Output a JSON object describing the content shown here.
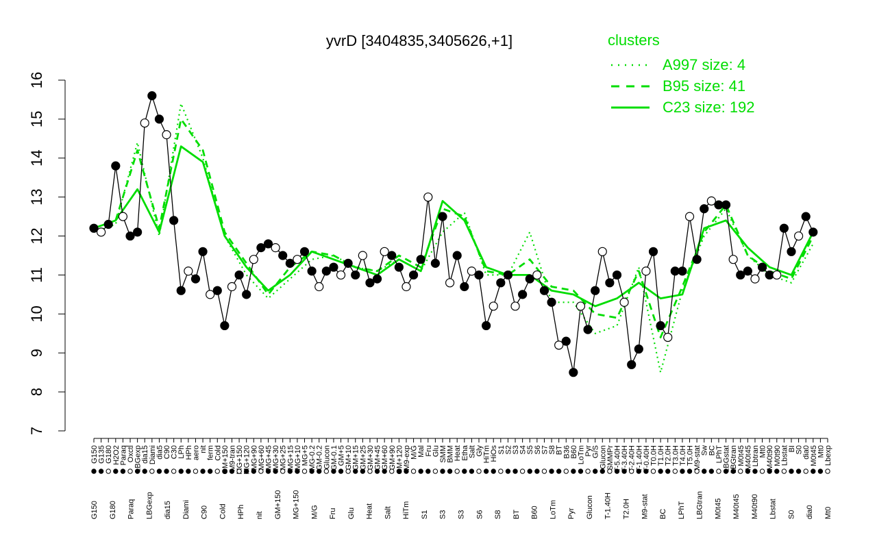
{
  "chart_data": {
    "type": "line",
    "title": "yvrD [3404835,3405626,+1]",
    "xlabel": "",
    "ylabel": "",
    "ylim": [
      7,
      16
    ],
    "yticks": [
      7,
      8,
      9,
      10,
      11,
      12,
      13,
      14,
      15,
      16
    ],
    "grid": false,
    "legend": {
      "title": "clusters",
      "position": "top-right",
      "entries": [
        "A997 size: 4",
        "B95 size: 41",
        "C23 size: 192"
      ]
    },
    "x_labels_top": [
      "G150",
      "G135",
      "G180",
      "H2O2",
      "Paraq",
      "Oxctl",
      "LBGexp",
      "dia15",
      "Diami",
      "dia5",
      "C90",
      "C30",
      "LPh",
      "HPh",
      "aero",
      "nit",
      "ferm",
      "Cold",
      "GM+150",
      "M9-tran",
      "MG+150",
      "MG+120",
      "MG+90",
      "MG+60",
      "MG+45",
      "MG+30",
      "MG+25",
      "MG+15",
      "MG+10",
      "MG+5",
      "MG-0.2",
      "GM-0.2",
      "Glucon",
      "GM-0.1",
      "GM+5",
      "GM+10",
      "GM+15",
      "GM+25",
      "GM+30",
      "GM+45",
      "GM+60",
      "GM+90",
      "GM+120",
      "M9-exp",
      "M/G",
      "Mal",
      "Fru",
      "Glu",
      "SMM",
      "BMM",
      "Heat",
      "Etha",
      "Salt",
      "Gly",
      "HiTm",
      "HiOs",
      "S1",
      "S2",
      "S3",
      "S4",
      "S5",
      "S6",
      "S7",
      "S8",
      "BT",
      "B36",
      "B60",
      "LoTm",
      "Pyr",
      "G/S",
      "Glucon",
      "SMMPr",
      "T-5.40H",
      "T-3.40H",
      "T-2.40H",
      "T-1.40H",
      "T-0.40H",
      "T0.0H",
      "T1.0H",
      "T2.0H",
      "T3.0H",
      "T4.0H",
      "T5.0H",
      "M9-stat",
      "Sw",
      "BC",
      "LPhT",
      "LBGstat",
      "LBGtran",
      "M0t45",
      "M40t45",
      "Lbtran",
      "Mt0",
      "M40t90",
      "M0t90",
      "Lbstat",
      "BI",
      "S0",
      "dia0",
      "M0t45",
      "Mt0",
      "Lbexp"
    ],
    "x_labels_bottom": [
      "G150",
      "G180",
      "Paraq",
      "LBGexp",
      "dia15",
      "Diami",
      "C90",
      "Cold",
      "HPh",
      "nit",
      "GM+150",
      "MG+150",
      "M/G",
      "Fru",
      "Glu",
      "Heat",
      "Salt",
      "HiTm",
      "S1",
      "S3",
      "S3",
      "S6",
      "S8",
      "BT",
      "B60",
      "LoTm",
      "Pyr",
      "Glucon",
      "T-1.40H",
      "T2.0H",
      "M9-stat",
      "BC",
      "LPhT",
      "LBGtran",
      "M0t45",
      "M40t45",
      "M40t90",
      "Lbstat",
      "S0",
      "dia0",
      "Mt0"
    ],
    "series": [
      {
        "name": "A997 size: 4",
        "style": "dotted",
        "color": "#00dd00",
        "x": [
          1,
          4,
          7,
          10,
          13,
          16,
          19,
          22,
          25,
          28,
          31,
          34,
          37,
          40,
          43,
          46,
          49,
          52,
          55,
          58,
          61,
          64,
          67,
          70,
          73,
          76,
          79,
          82,
          85,
          88,
          91,
          94,
          97,
          100
        ],
        "values": [
          12.1,
          12.3,
          14.4,
          12.0,
          15.4,
          14.0,
          12.0,
          11.0,
          10.4,
          10.9,
          11.4,
          11.5,
          11.2,
          11.1,
          11.4,
          11.1,
          12.1,
          12.6,
          11.0,
          11.0,
          12.1,
          10.3,
          10.3,
          9.5,
          9.7,
          11.2,
          8.5,
          10.6,
          12.0,
          12.7,
          11.5,
          11.0,
          10.8,
          11.8
        ]
      },
      {
        "name": "B95 size: 41",
        "style": "dashed",
        "color": "#00dd00",
        "x": [
          1,
          4,
          7,
          10,
          13,
          16,
          19,
          22,
          25,
          28,
          31,
          34,
          37,
          40,
          43,
          46,
          49,
          52,
          55,
          58,
          61,
          64,
          67,
          70,
          73,
          76,
          79,
          82,
          85,
          88,
          91,
          94,
          97,
          100
        ],
        "values": [
          12.2,
          12.4,
          14.2,
          12.2,
          15.0,
          14.2,
          12.1,
          11.3,
          10.5,
          11.2,
          11.6,
          11.5,
          11.2,
          11.1,
          11.5,
          11.2,
          12.7,
          12.5,
          11.1,
          11.0,
          11.4,
          10.7,
          10.6,
          10.0,
          9.9,
          11.1,
          9.4,
          10.7,
          12.1,
          12.8,
          11.5,
          11.1,
          10.9,
          12.0
        ]
      },
      {
        "name": "C23 size: 192",
        "style": "solid",
        "color": "#00dd00",
        "x": [
          1,
          4,
          7,
          10,
          13,
          16,
          19,
          22,
          25,
          28,
          31,
          34,
          37,
          40,
          43,
          46,
          49,
          52,
          55,
          58,
          61,
          64,
          67,
          70,
          73,
          76,
          79,
          82,
          85,
          88,
          91,
          94,
          97,
          100
        ],
        "values": [
          12.2,
          12.4,
          13.2,
          12.1,
          14.3,
          13.9,
          12.0,
          11.2,
          10.6,
          11.0,
          11.6,
          11.4,
          11.2,
          11.0,
          11.4,
          11.1,
          12.9,
          12.4,
          11.2,
          11.0,
          11.0,
          10.6,
          10.5,
          10.2,
          10.4,
          10.8,
          10.4,
          10.5,
          12.2,
          12.4,
          11.7,
          11.2,
          11.0,
          12.1
        ]
      },
      {
        "name": "",
        "style": "black-line-with-points",
        "color": "#000000",
        "x": [
          1,
          2,
          3,
          4,
          5,
          6,
          7,
          8,
          9,
          10,
          11,
          12,
          13,
          14,
          15,
          16,
          17,
          18,
          19,
          20,
          21,
          22,
          23,
          24,
          25,
          26,
          27,
          28,
          29,
          30,
          31,
          32,
          33,
          34,
          35,
          36,
          37,
          38,
          39,
          40,
          41,
          42,
          43,
          44,
          45,
          46,
          47,
          48,
          49,
          50,
          51,
          52,
          53,
          54,
          55,
          56,
          57,
          58,
          59,
          60,
          61,
          62,
          63,
          64,
          65,
          66,
          67,
          68,
          69,
          70,
          71,
          72,
          73,
          74,
          75,
          76,
          77,
          78,
          79,
          80,
          81,
          82,
          83,
          84,
          85,
          86,
          87,
          88,
          89,
          90,
          91,
          92,
          93,
          94,
          95,
          96,
          97,
          98,
          99,
          100
        ],
        "values": [
          12.2,
          12.1,
          12.3,
          13.8,
          12.5,
          12.0,
          12.1,
          14.9,
          15.6,
          15.0,
          14.6,
          12.4,
          10.6,
          11.1,
          10.9,
          11.6,
          10.5,
          10.6,
          9.7,
          10.7,
          11.0,
          10.5,
          11.4,
          11.7,
          11.8,
          11.7,
          11.5,
          11.3,
          11.4,
          11.6,
          11.1,
          10.7,
          11.1,
          11.2,
          11.0,
          11.3,
          11.0,
          11.5,
          10.8,
          10.9,
          11.6,
          11.5,
          11.2,
          10.7,
          11.0,
          11.4,
          13.0,
          11.3,
          12.5,
          10.8,
          11.5,
          10.7,
          11.1,
          11.0,
          9.7,
          10.2,
          10.8,
          11.0,
          10.2,
          10.5,
          10.9,
          11.0,
          10.6,
          10.3,
          9.2,
          9.3,
          8.5,
          10.2,
          9.6,
          10.6,
          11.6,
          10.8,
          11.0,
          10.3,
          8.7,
          9.1,
          11.1,
          11.6,
          9.7,
          9.4,
          11.1,
          11.1,
          12.5,
          11.4,
          12.7,
          12.9,
          12.8,
          12.8,
          11.4,
          11.0,
          11.1,
          10.9,
          11.2,
          11.0,
          11.0,
          12.2,
          11.6,
          12.0,
          12.5,
          12.1
        ]
      }
    ]
  }
}
